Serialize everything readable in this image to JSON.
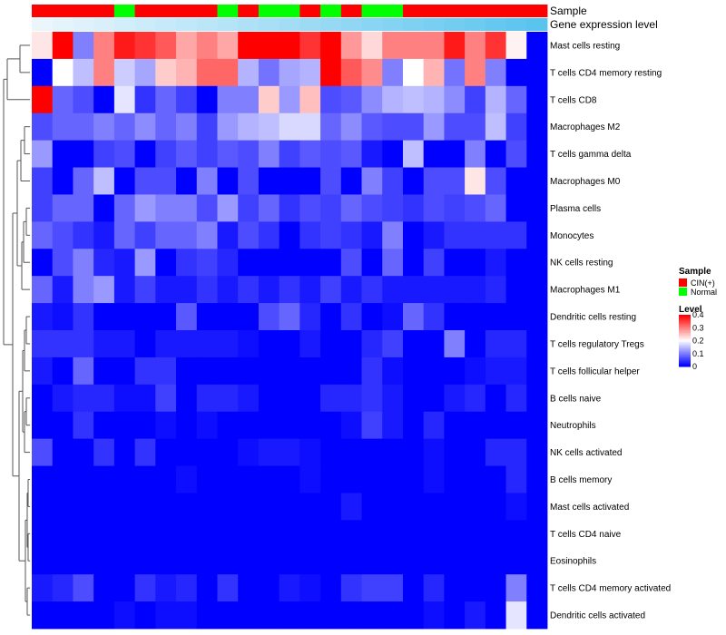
{
  "chart_data": {
    "type": "heatmap",
    "title": "",
    "column_annotations": [
      {
        "name": "Sample",
        "values": [
          "CIN(+)",
          "CIN(+)",
          "CIN(+)",
          "CIN(+)",
          "Normal",
          "CIN(+)",
          "CIN(+)",
          "CIN(+)",
          "CIN(+)",
          "Normal",
          "CIN(+)",
          "Normal",
          "Normal",
          "CIN(+)",
          "Normal",
          "CIN(+)",
          "Normal",
          "Normal",
          "CIN(+)",
          "CIN(+)",
          "CIN(+)",
          "CIN(+)",
          "CIN(+)",
          "CIN(+)",
          "CIN(+)"
        ]
      },
      {
        "name": "Gene expression level",
        "values": [
          0.0,
          0.04,
          0.08,
          0.12,
          0.17,
          0.21,
          0.25,
          0.29,
          0.33,
          0.37,
          0.42,
          0.46,
          0.5,
          0.54,
          0.58,
          0.62,
          0.67,
          0.71,
          0.75,
          0.79,
          0.83,
          0.87,
          0.92,
          0.96,
          1.0
        ]
      }
    ],
    "rows": [
      "Mast cells resting",
      "T cells CD4 memory resting",
      "T cells CD8",
      "Macrophages M2",
      "T cells gamma delta",
      "Macrophages M0",
      "Plasma cells",
      "Monocytes",
      "NK cells resting",
      "Macrophages M1",
      "Dendritic cells resting",
      "T cells regulatory  Tregs",
      "T cells follicular helper",
      "B cells naive",
      "Neutrophils",
      "NK cells activated",
      "B cells memory",
      "Mast cells activated",
      "T cells CD4 naive",
      "Eosinophils",
      "T cells CD4 memory activated",
      "Dendritic cells activated"
    ],
    "values": [
      [
        0.22,
        0.4,
        0.1,
        0.3,
        0.38,
        0.36,
        0.33,
        0.27,
        0.3,
        0.27,
        0.4,
        0.4,
        0.4,
        0.36,
        0.4,
        0.28,
        0.23,
        0.3,
        0.3,
        0.3,
        0.38,
        0.3,
        0.36,
        0.21,
        0.0
      ],
      [
        0.0,
        0.2,
        0.15,
        0.3,
        0.16,
        0.13,
        0.24,
        0.26,
        0.32,
        0.32,
        0.14,
        0.09,
        0.13,
        0.14,
        0.4,
        0.33,
        0.29,
        0.1,
        0.2,
        0.26,
        0.09,
        0.3,
        0.1,
        0.0,
        0.0
      ],
      [
        0.4,
        0.08,
        0.06,
        0.0,
        0.18,
        0.04,
        0.08,
        0.05,
        0.0,
        0.1,
        0.1,
        0.24,
        0.12,
        0.25,
        0.06,
        0.07,
        0.11,
        0.14,
        0.15,
        0.14,
        0.11,
        0.05,
        0.14,
        0.08,
        0.0
      ],
      [
        0.06,
        0.08,
        0.08,
        0.1,
        0.08,
        0.11,
        0.08,
        0.1,
        0.05,
        0.12,
        0.14,
        0.15,
        0.17,
        0.17,
        0.08,
        0.11,
        0.07,
        0.06,
        0.06,
        0.12,
        0.06,
        0.06,
        0.15,
        0.05,
        0.0
      ],
      [
        0.12,
        0.0,
        0.0,
        0.05,
        0.06,
        0.0,
        0.05,
        0.07,
        0.05,
        0.07,
        0.06,
        0.1,
        0.05,
        0.07,
        0.06,
        0.07,
        0.02,
        0.0,
        0.15,
        0.0,
        0.0,
        0.1,
        0.0,
        0.06,
        0.0
      ],
      [
        0.05,
        0.0,
        0.08,
        0.15,
        0.0,
        0.06,
        0.06,
        0.0,
        0.1,
        0.0,
        0.06,
        0.0,
        0.0,
        0.0,
        0.06,
        0.0,
        0.1,
        0.05,
        0.0,
        0.06,
        0.06,
        0.22,
        0.06,
        0.0,
        0.0
      ],
      [
        0.05,
        0.08,
        0.08,
        0.0,
        0.08,
        0.12,
        0.1,
        0.1,
        0.06,
        0.12,
        0.05,
        0.08,
        0.04,
        0.06,
        0.05,
        0.08,
        0.06,
        0.05,
        0.04,
        0.06,
        0.05,
        0.06,
        0.08,
        0.0,
        0.0
      ],
      [
        0.08,
        0.06,
        0.04,
        0.02,
        0.08,
        0.05,
        0.08,
        0.08,
        0.1,
        0.02,
        0.06,
        0.04,
        0.0,
        0.04,
        0.05,
        0.04,
        0.02,
        0.1,
        0.0,
        0.02,
        0.04,
        0.04,
        0.04,
        0.04,
        0.0
      ],
      [
        0.0,
        0.06,
        0.1,
        0.03,
        0.02,
        0.12,
        0.0,
        0.04,
        0.05,
        0.03,
        0.0,
        0.0,
        0.0,
        0.0,
        0.0,
        0.06,
        0.0,
        0.08,
        0.0,
        0.05,
        0.0,
        0.0,
        0.02,
        0.0,
        0.0
      ],
      [
        0.08,
        0.02,
        0.1,
        0.12,
        0.02,
        0.05,
        0.02,
        0.02,
        0.04,
        0.02,
        0.04,
        0.02,
        0.04,
        0.02,
        0.05,
        0.02,
        0.04,
        0.02,
        0.02,
        0.02,
        0.02,
        0.02,
        0.03,
        0.0,
        0.0
      ],
      [
        0.02,
        0.01,
        0.04,
        0.0,
        0.0,
        0.0,
        0.0,
        0.07,
        0.0,
        0.0,
        0.0,
        0.06,
        0.08,
        0.03,
        0.0,
        0.04,
        0.0,
        0.01,
        0.08,
        0.04,
        0.0,
        0.0,
        0.0,
        0.0,
        0.0
      ],
      [
        0.04,
        0.04,
        0.04,
        0.02,
        0.02,
        0.0,
        0.02,
        0.02,
        0.02,
        0.02,
        0.01,
        0.0,
        0.0,
        0.02,
        0.0,
        0.0,
        0.03,
        0.05,
        0.0,
        0.0,
        0.1,
        0.0,
        0.03,
        0.03,
        0.0
      ],
      [
        0.02,
        0.0,
        0.08,
        0.0,
        0.0,
        0.04,
        0.04,
        0.0,
        0.0,
        0.0,
        0.0,
        0.0,
        0.0,
        0.0,
        0.0,
        0.0,
        0.04,
        0.01,
        0.0,
        0.0,
        0.0,
        0.01,
        0.02,
        0.02,
        0.0
      ],
      [
        0.0,
        0.02,
        0.03,
        0.03,
        0.01,
        0.01,
        0.05,
        0.0,
        0.03,
        0.03,
        0.02,
        0.0,
        0.0,
        0.0,
        0.03,
        0.03,
        0.04,
        0.02,
        0.0,
        0.0,
        0.02,
        0.03,
        0.0,
        0.03,
        0.0
      ],
      [
        0.0,
        0.0,
        0.04,
        0.0,
        0.0,
        0.0,
        0.01,
        0.0,
        0.01,
        0.0,
        0.0,
        0.0,
        0.0,
        0.0,
        0.0,
        0.01,
        0.05,
        0.02,
        0.0,
        0.03,
        0.0,
        0.0,
        0.0,
        0.0,
        0.0
      ],
      [
        0.06,
        0.0,
        0.0,
        0.04,
        0.0,
        0.04,
        0.0,
        0.0,
        0.0,
        0.0,
        0.01,
        0.02,
        0.02,
        0.01,
        0.0,
        0.0,
        0.0,
        0.0,
        0.0,
        0.01,
        0.0,
        0.0,
        0.03,
        0.03,
        0.0
      ],
      [
        0.0,
        0.0,
        0.0,
        0.0,
        0.0,
        0.0,
        0.0,
        0.01,
        0.0,
        0.0,
        0.0,
        0.0,
        0.0,
        0.01,
        0.0,
        0.0,
        0.0,
        0.0,
        0.0,
        0.01,
        0.0,
        0.0,
        0.0,
        0.03,
        0.0
      ],
      [
        0.0,
        0.0,
        0.0,
        0.0,
        0.0,
        0.0,
        0.0,
        0.0,
        0.0,
        0.0,
        0.0,
        0.0,
        0.0,
        0.0,
        0.0,
        0.02,
        0.0,
        0.0,
        0.0,
        0.0,
        0.0,
        0.0,
        0.0,
        0.01,
        0.0
      ],
      [
        0.0,
        0.0,
        0.0,
        0.0,
        0.0,
        0.0,
        0.0,
        0.0,
        0.0,
        0.0,
        0.0,
        0.0,
        0.0,
        0.0,
        0.0,
        0.0,
        0.0,
        0.0,
        0.0,
        0.0,
        0.0,
        0.0,
        0.0,
        0.0,
        0.0
      ],
      [
        0.0,
        0.0,
        0.0,
        0.0,
        0.0,
        0.0,
        0.0,
        0.0,
        0.0,
        0.0,
        0.0,
        0.0,
        0.0,
        0.0,
        0.0,
        0.0,
        0.0,
        0.0,
        0.0,
        0.0,
        0.0,
        0.0,
        0.0,
        0.0,
        0.0
      ],
      [
        0.02,
        0.03,
        0.06,
        0.0,
        0.0,
        0.04,
        0.02,
        0.03,
        0.0,
        0.04,
        0.0,
        0.0,
        0.02,
        0.01,
        0.0,
        0.04,
        0.05,
        0.05,
        0.0,
        0.03,
        0.0,
        0.0,
        0.0,
        0.1,
        0.0
      ],
      [
        0.0,
        0.0,
        0.0,
        0.0,
        0.01,
        0.0,
        0.01,
        0.01,
        0.0,
        0.0,
        0.0,
        0.0,
        0.0,
        0.0,
        0.0,
        0.0,
        0.0,
        0.0,
        0.0,
        0.01,
        0.0,
        0.02,
        0.0,
        0.18,
        0.0
      ]
    ],
    "legend": {
      "sample_title": "Sample",
      "sample_entries": [
        {
          "label": "CIN(+)",
          "color": "#ff0000"
        },
        {
          "label": "Normal",
          "color": "#00ff00"
        }
      ],
      "level_title": "Level",
      "level_ticks": [
        "0.4",
        "0.3",
        "0.2",
        "0.1",
        "0"
      ],
      "level_range": [
        0,
        0.4
      ]
    },
    "colors": {
      "low": "#0000ff",
      "mid": "#ffffff",
      "high": "#ff0000",
      "expr_low": "#eaf6fc",
      "expr_high": "#5bc4ee"
    }
  }
}
